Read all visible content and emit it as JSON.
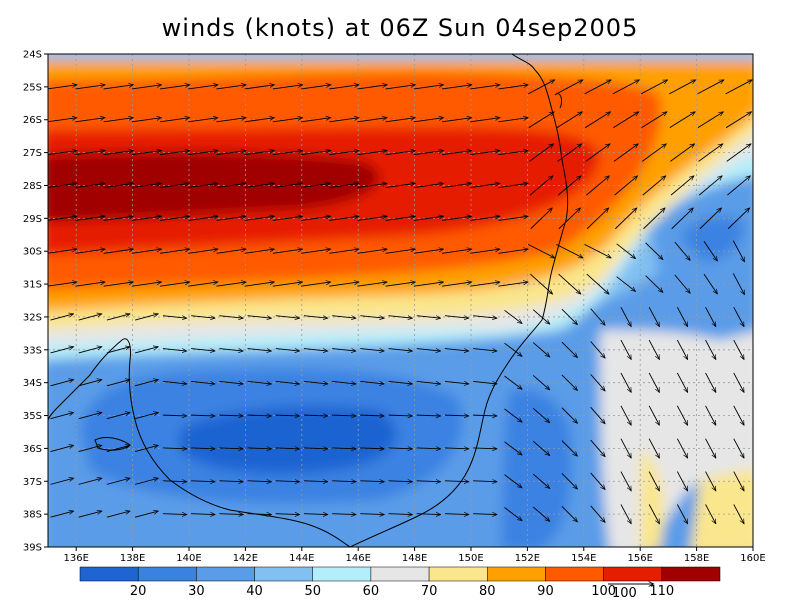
{
  "title": "winds (knots) at 06Z Sun 04sep2005",
  "lat_labels": [
    "24S",
    "25S",
    "26S",
    "27S",
    "28S",
    "29S",
    "30S",
    "31S",
    "32S",
    "33S",
    "34S",
    "35S",
    "36S",
    "37S",
    "38S",
    "39S"
  ],
  "lon_labels": [
    "136E",
    "138E",
    "140E",
    "142E",
    "144E",
    "146E",
    "148E",
    "150E",
    "152E",
    "154E",
    "156E",
    "158E",
    "160E"
  ],
  "colorbar": {
    "labels": [
      "20",
      "30",
      "40",
      "50",
      "60",
      "70",
      "80",
      "90",
      "100",
      "110"
    ],
    "colors": [
      "#1e64d2",
      "#3a82e2",
      "#5a9ce8",
      "#82c0f2",
      "#b4eefa",
      "#e6e6e6",
      "#fae68c",
      "#ffa000",
      "#ff5a00",
      "#e61e00",
      "#a00000"
    ]
  },
  "reference_vector": {
    "label": "100"
  },
  "chart_data": {
    "type": "heatmap",
    "title": "winds (knots) at 06Z Sun 04sep2005",
    "x_range": [
      135,
      160
    ],
    "y_range": [
      -39,
      -24
    ],
    "levels": [
      10,
      20,
      30,
      40,
      50,
      60,
      70,
      80,
      90,
      100,
      110,
      120
    ],
    "regions": [
      {
        "name": "jet core",
        "value_range": [
          100,
          110
        ],
        "lon": [
          135,
          154
        ],
        "lat": [
          -29.5,
          -27
        ]
      },
      {
        "name": "low wind area south",
        "value_range": [
          10,
          20
        ],
        "lon": [
          140,
          146
        ],
        "lat": [
          -37.5,
          -35
        ]
      },
      {
        "name": "low wind area east",
        "value_range": [
          20,
          30
        ],
        "lon": [
          157,
          160
        ],
        "lat": [
          -31,
          -29
        ]
      }
    ]
  }
}
